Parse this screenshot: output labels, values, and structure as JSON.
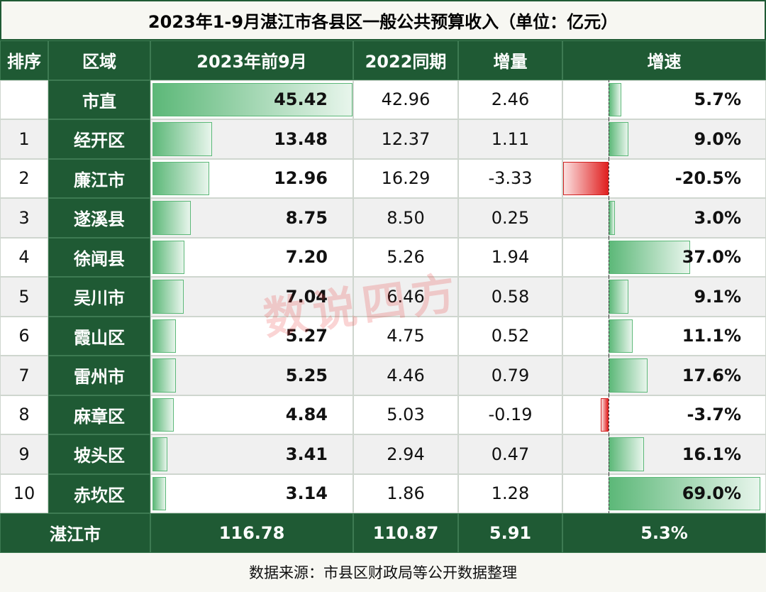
{
  "title": "2023年1-9月湛江市各县区一般公共预算收入（单位：亿元）",
  "header": [
    "排序",
    "区域",
    "2023年前9月",
    "2022同期",
    "增量",
    "增速"
  ],
  "table": {
    "rows": [
      [
        null,
        "市直",
        "45.42",
        "42.96",
        "2.46",
        "5.7%"
      ],
      [
        "1",
        "经开区",
        "13.48",
        "12.37",
        "1.11",
        "9.0%"
      ],
      [
        "2",
        "廉江市",
        "12.96",
        "16.29",
        "-3.33",
        "-20.5%"
      ],
      [
        "3",
        "遂溪县",
        "8.75",
        "8.50",
        "0.25",
        "3.0%"
      ],
      [
        "4",
        "徐闻县",
        "7.20",
        "5.26",
        "1.94",
        "37.0%"
      ],
      [
        "5",
        "吴川市",
        "7.04",
        "6.46",
        "0.58",
        "9.1%"
      ],
      [
        "6",
        "霞山区",
        "5.27",
        "4.75",
        "0.52",
        "11.1%"
      ],
      [
        "7",
        "雷州市",
        "5.25",
        "4.46",
        "0.79",
        "17.6%"
      ],
      [
        "8",
        "麻章区",
        "4.84",
        "5.03",
        "-0.19",
        "-3.7%"
      ],
      [
        "9",
        "坡头区",
        "3.41",
        "2.94",
        "0.47",
        "16.1%"
      ],
      [
        "10",
        "赤坎区",
        "3.14",
        "1.86",
        "1.28",
        "69.0%"
      ]
    ]
  },
  "total": [
    "湛江市",
    "116.78",
    "110.87",
    "5.91",
    "5.3%"
  ],
  "source": "数据来源：市县区财政局等公开数据整理",
  "watermark": "数说四方"
}
